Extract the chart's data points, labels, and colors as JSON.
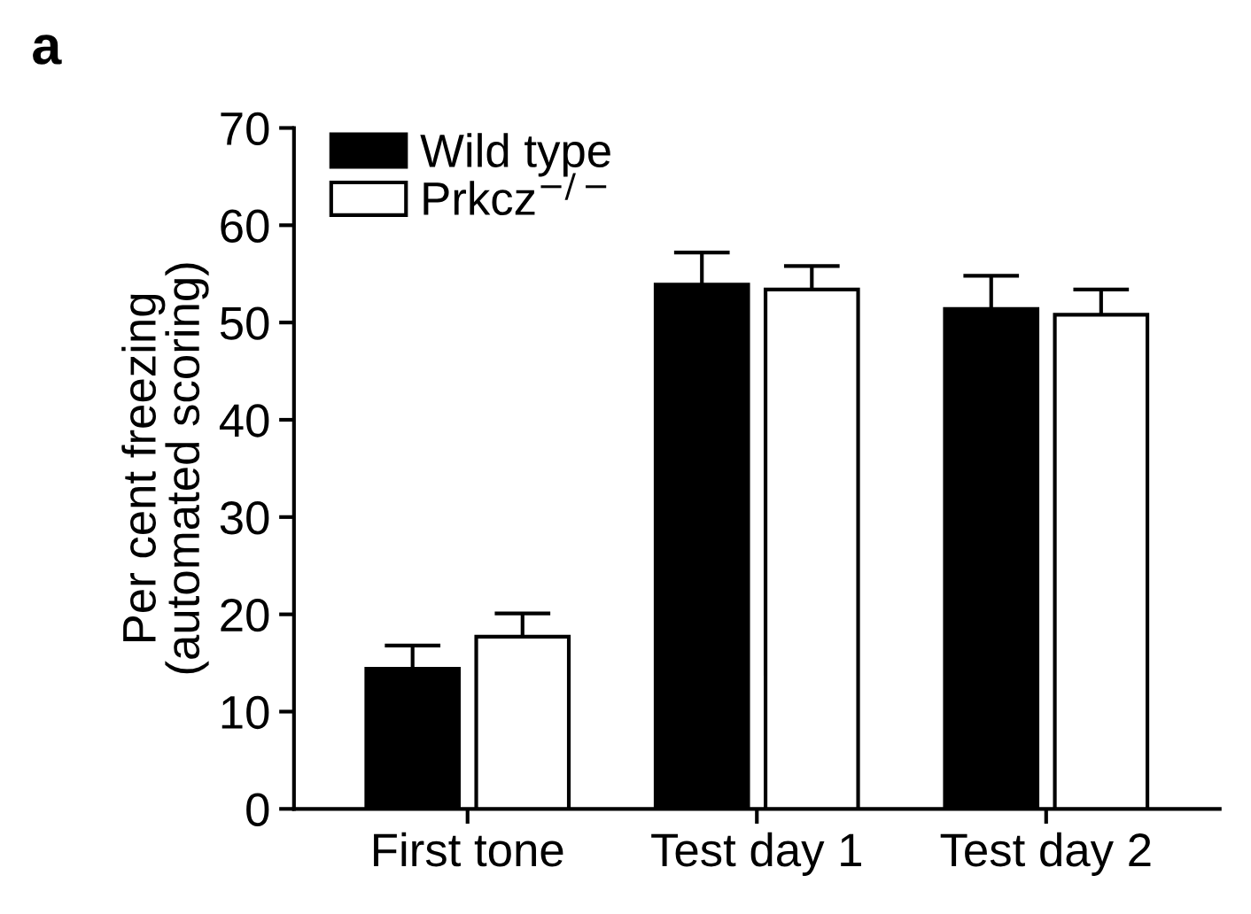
{
  "chart_data": {
    "type": "bar",
    "title": "a",
    "ylabel": "Per cent freezing\n(automated scoring)",
    "categories": [
      "First tone",
      "Test day 1",
      "Test day 2"
    ],
    "series": [
      {
        "name": "Wild type",
        "color": "#000000",
        "values": [
          14.4,
          53.9,
          51.4
        ],
        "errors": [
          [
            14.4,
            16.8
          ],
          [
            53.9,
            57.2
          ],
          [
            51.4,
            54.8
          ]
        ]
      },
      {
        "name": "Prkcz$^{−/−}$",
        "color": "#ffffff",
        "values": [
          17.7,
          53.4,
          50.8
        ],
        "errors": [
          [
            17.7,
            20.1
          ],
          [
            53.4,
            55.8
          ],
          [
            50.8,
            53.4
          ]
        ]
      }
    ],
    "ylim": [
      0,
      70
    ],
    "yticks": [
      0,
      10,
      20,
      30,
      40,
      50,
      60,
      70
    ],
    "grid": false,
    "legend": "top left"
  }
}
